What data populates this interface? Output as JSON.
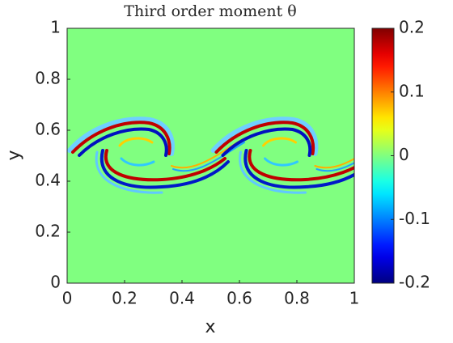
{
  "chart_data": {
    "type": "heatmap",
    "title": "Third order moment θ",
    "xlabel": "x",
    "ylabel": "y",
    "xlim": [
      0,
      1
    ],
    "ylim": [
      0,
      1
    ],
    "xticks": [
      0,
      0.2,
      0.4,
      0.6,
      0.8,
      1
    ],
    "yticks": [
      0,
      0.2,
      0.4,
      0.6,
      0.8,
      1
    ],
    "colormap": "jet",
    "clim": [
      -0.2,
      0.2
    ],
    "cticks": [
      -0.2,
      -0.1,
      0,
      0.1,
      0.2
    ]
  }
}
